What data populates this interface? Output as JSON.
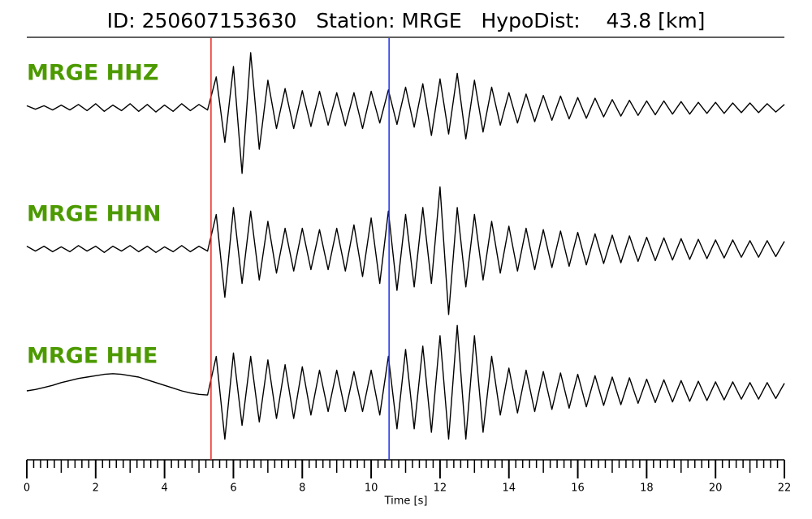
{
  "chart_data": {
    "type": "seismogram",
    "title": "ID: 250607153630   Station: MRGE   HypoDist:    43.8 [km]",
    "xlabel": "Time [s]",
    "xlim": [
      0,
      22
    ],
    "xticks": [
      0,
      2,
      4,
      6,
      8,
      10,
      12,
      14,
      16,
      18,
      20,
      22
    ],
    "minor_xticks": [
      0.2,
      0.4,
      0.6,
      0.8,
      1,
      1.2,
      1.4,
      1.6,
      1.8,
      2.2,
      2.4,
      2.6,
      2.8,
      3,
      3.2,
      3.4,
      3.6,
      3.8,
      4.2,
      4.4,
      4.6,
      4.8,
      5,
      5.2,
      5.4,
      5.6,
      5.8,
      6.2,
      6.4,
      6.6,
      6.8,
      7,
      7.2,
      7.4,
      7.6,
      7.8,
      8.2,
      8.4,
      8.6,
      8.8,
      9,
      9.2,
      9.4,
      9.6,
      9.8,
      10.2,
      10.4,
      10.6,
      10.8,
      11,
      11.2,
      11.4,
      11.6,
      11.8,
      12.2,
      12.4,
      12.6,
      12.8,
      13,
      13.2,
      13.4,
      13.6,
      13.8,
      14.2,
      14.4,
      14.6,
      14.8,
      15,
      15.2,
      15.4,
      15.6,
      15.8,
      16.2,
      16.4,
      16.6,
      16.8,
      17,
      17.2,
      17.4,
      17.6,
      17.8,
      18.2,
      18.4,
      18.6,
      18.8,
      19,
      19.2,
      19.4,
      19.6,
      19.8,
      20.2,
      20.4,
      20.6,
      20.8,
      21,
      21.2,
      21.4,
      21.6,
      21.8
    ],
    "label_color": "#4c9a00",
    "picks": [
      {
        "value": 5.35,
        "color": "#e8271f"
      },
      {
        "value": 10.52,
        "color": "#1f2ee8"
      }
    ],
    "x": [
      0,
      0.25,
      0.5,
      0.75,
      1,
      1.25,
      1.5,
      1.75,
      2,
      2.25,
      2.5,
      2.75,
      3,
      3.25,
      3.5,
      3.75,
      4,
      4.25,
      4.5,
      4.75,
      5,
      5.25,
      5.5,
      5.75,
      6,
      6.25,
      6.5,
      6.75,
      7,
      7.25,
      7.5,
      7.75,
      8,
      8.25,
      8.5,
      8.75,
      9,
      9.25,
      9.5,
      9.75,
      10,
      10.25,
      10.5,
      10.75,
      11,
      11.25,
      11.5,
      11.75,
      12,
      12.25,
      12.5,
      12.75,
      13,
      13.25,
      13.5,
      13.75,
      14,
      14.25,
      14.5,
      14.75,
      15,
      15.25,
      15.5,
      15.75,
      16,
      16.25,
      16.5,
      16.75,
      17,
      17.25,
      17.5,
      17.75,
      18,
      18.25,
      18.5,
      18.75,
      19,
      19.25,
      19.5,
      19.75,
      20,
      20.25,
      20.5,
      20.75,
      21,
      21.25,
      21.5,
      21.75,
      22
    ],
    "series": [
      {
        "name": "MRGE HHZ",
        "color": "#000000",
        "values": [
          0.03,
          -0.02,
          0.03,
          -0.03,
          0.04,
          -0.03,
          0.05,
          -0.04,
          0.06,
          -0.05,
          0.04,
          -0.04,
          0.06,
          -0.05,
          0.05,
          -0.06,
          0.04,
          -0.05,
          0.06,
          -0.04,
          0.05,
          -0.03,
          0.45,
          -0.5,
          0.6,
          -0.95,
          0.8,
          -0.6,
          0.4,
          -0.3,
          0.28,
          -0.3,
          0.25,
          -0.27,
          0.24,
          -0.25,
          0.22,
          -0.26,
          0.22,
          -0.3,
          0.24,
          -0.22,
          0.26,
          -0.24,
          0.3,
          -0.28,
          0.35,
          -0.4,
          0.42,
          -0.38,
          0.5,
          -0.45,
          0.4,
          -0.35,
          0.3,
          -0.25,
          0.22,
          -0.22,
          0.2,
          -0.2,
          0.18,
          -0.18,
          0.17,
          -0.16,
          0.15,
          -0.15,
          0.14,
          -0.13,
          0.12,
          -0.12,
          0.11,
          -0.11,
          0.1,
          -0.1,
          0.1,
          -0.09,
          0.09,
          -0.09,
          0.08,
          -0.08,
          0.08,
          -0.08,
          0.07,
          -0.07,
          0.07,
          -0.07,
          0.06,
          -0.06,
          0.05
        ]
      },
      {
        "name": "MRGE HHN",
        "color": "#000000",
        "values": [
          0.04,
          -0.03,
          0.04,
          -0.04,
          0.03,
          -0.04,
          0.05,
          -0.03,
          0.04,
          -0.05,
          0.04,
          -0.03,
          0.05,
          -0.04,
          0.04,
          -0.05,
          0.03,
          -0.04,
          0.05,
          -0.04,
          0.04,
          -0.03,
          0.5,
          -0.7,
          0.6,
          -0.5,
          0.55,
          -0.45,
          0.4,
          -0.35,
          0.3,
          -0.32,
          0.3,
          -0.3,
          0.28,
          -0.3,
          0.3,
          -0.32,
          0.35,
          -0.4,
          0.45,
          -0.5,
          0.55,
          -0.6,
          0.5,
          -0.55,
          0.6,
          -0.5,
          0.9,
          -0.95,
          0.6,
          -0.55,
          0.5,
          -0.45,
          0.4,
          -0.35,
          0.33,
          -0.32,
          0.3,
          -0.3,
          0.28,
          -0.27,
          0.26,
          -0.25,
          0.24,
          -0.23,
          0.22,
          -0.21,
          0.2,
          -0.2,
          0.19,
          -0.18,
          0.17,
          -0.17,
          0.16,
          -0.16,
          0.15,
          -0.15,
          0.14,
          -0.14,
          0.13,
          -0.13,
          0.13,
          -0.12,
          0.12,
          -0.12,
          0.12,
          -0.11,
          0.11
        ]
      },
      {
        "name": "MRGE HHE",
        "color": "#000000",
        "values": [
          0,
          0.02,
          0.05,
          0.08,
          0.12,
          0.15,
          0.18,
          0.2,
          0.22,
          0.24,
          0.25,
          0.24,
          0.22,
          0.2,
          0.16,
          0.12,
          0.08,
          0.04,
          0,
          -0.03,
          -0.05,
          -0.06,
          0.5,
          -0.7,
          0.55,
          -0.5,
          0.5,
          -0.45,
          0.45,
          -0.4,
          0.38,
          -0.4,
          0.35,
          -0.35,
          0.3,
          -0.3,
          0.3,
          -0.3,
          0.28,
          -0.3,
          0.3,
          -0.35,
          0.5,
          -0.55,
          0.6,
          -0.55,
          0.65,
          -0.6,
          0.8,
          -0.7,
          0.95,
          -0.7,
          0.8,
          -0.6,
          0.5,
          -0.35,
          0.33,
          -0.32,
          0.3,
          -0.3,
          0.28,
          -0.27,
          0.26,
          -0.25,
          0.24,
          -0.23,
          0.22,
          -0.21,
          0.2,
          -0.2,
          0.19,
          -0.18,
          0.17,
          -0.17,
          0.16,
          -0.16,
          0.15,
          -0.15,
          0.14,
          -0.14,
          0.13,
          -0.13,
          0.13,
          -0.12,
          0.12,
          -0.12,
          0.12,
          -0.11,
          0.11
        ]
      }
    ]
  }
}
